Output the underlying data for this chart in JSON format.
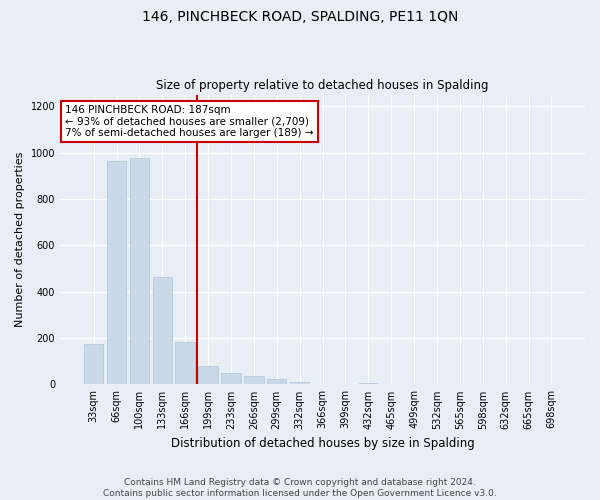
{
  "title": "146, PINCHBECK ROAD, SPALDING, PE11 1QN",
  "subtitle": "Size of property relative to detached houses in Spalding",
  "xlabel": "Distribution of detached houses by size in Spalding",
  "ylabel": "Number of detached properties",
  "bar_color": "#c9d9ea",
  "bar_edge_color": "#b0c4d8",
  "vline_color": "#cc0000",
  "annotation_text": "146 PINCHBECK ROAD: 187sqm\n← 93% of detached houses are smaller (2,709)\n7% of semi-detached houses are larger (189) →",
  "annotation_box_color": "white",
  "annotation_box_edge": "#cc0000",
  "footer_text": "Contains HM Land Registry data © Crown copyright and database right 2024.\nContains public sector information licensed under the Open Government Licence v3.0.",
  "categories": [
    "33sqm",
    "66sqm",
    "100sqm",
    "133sqm",
    "166sqm",
    "199sqm",
    "233sqm",
    "266sqm",
    "299sqm",
    "332sqm",
    "366sqm",
    "399sqm",
    "432sqm",
    "465sqm",
    "499sqm",
    "532sqm",
    "565sqm",
    "598sqm",
    "632sqm",
    "665sqm",
    "698sqm"
  ],
  "values": [
    175,
    965,
    975,
    465,
    185,
    80,
    48,
    35,
    25,
    12,
    0,
    0,
    8,
    0,
    0,
    0,
    0,
    0,
    0,
    0,
    0
  ],
  "ylim": [
    0,
    1250
  ],
  "yticks": [
    0,
    200,
    400,
    600,
    800,
    1000,
    1200
  ],
  "background_color": "#e8eef6",
  "plot_background": "#e8eef6",
  "grid_color": "white",
  "title_fontsize": 10,
  "subtitle_fontsize": 8.5,
  "ylabel_fontsize": 8,
  "xlabel_fontsize": 8.5,
  "tick_fontsize": 7,
  "annotation_fontsize": 7.5,
  "footer_fontsize": 6.5
}
